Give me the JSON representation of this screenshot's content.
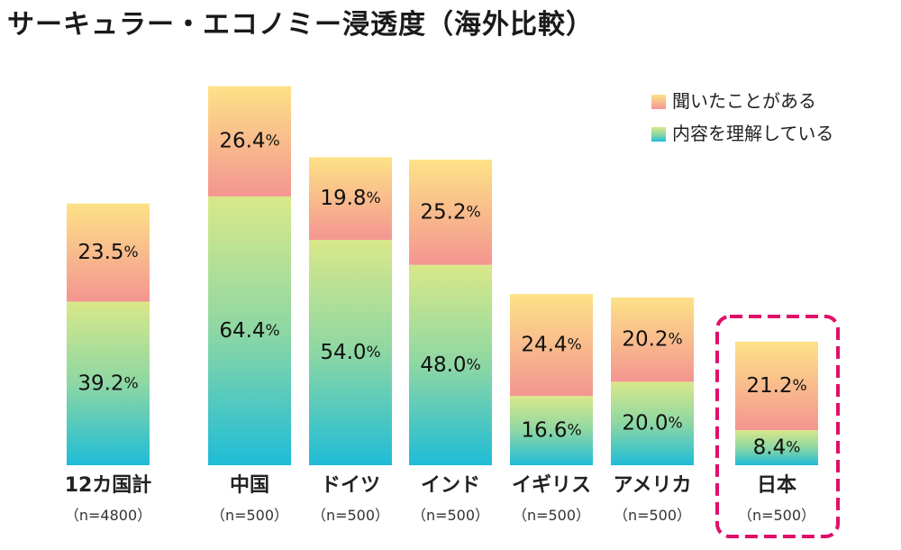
{
  "title": "サーキュラー・エコノミー浸透度（海外比較）",
  "colors": {
    "heard_top": "#fde287",
    "heard_bottom": "#f49591",
    "understand_top": "#d9e889",
    "understand_mid": "#8dd7a3",
    "understand_bottom": "#1fbcd8",
    "highlight": "#e0106a"
  },
  "chart_data": {
    "type": "bar",
    "stacked": true,
    "title": "サーキュラー・エコノミー浸透度（海外比較）",
    "categories": [
      "12カ国計",
      "中国",
      "ドイツ",
      "インド",
      "イギリス",
      "アメリカ",
      "日本"
    ],
    "sample_sizes": [
      "（n=4800）",
      "（n=500）",
      "（n=500）",
      "（n=500）",
      "（n=500）",
      "（n=500）",
      "（n=500）"
    ],
    "series": [
      {
        "name": "内容を理解している",
        "values": [
          39.2,
          64.4,
          54.0,
          48.0,
          16.6,
          20.0,
          8.4
        ]
      },
      {
        "name": "聞いたことがある",
        "values": [
          23.5,
          26.4,
          19.8,
          25.2,
          24.4,
          20.2,
          21.2
        ]
      }
    ],
    "unit": "%",
    "highlight_category": "日本",
    "legend_position": "top-right",
    "grid": false,
    "axis_shown": false
  }
}
